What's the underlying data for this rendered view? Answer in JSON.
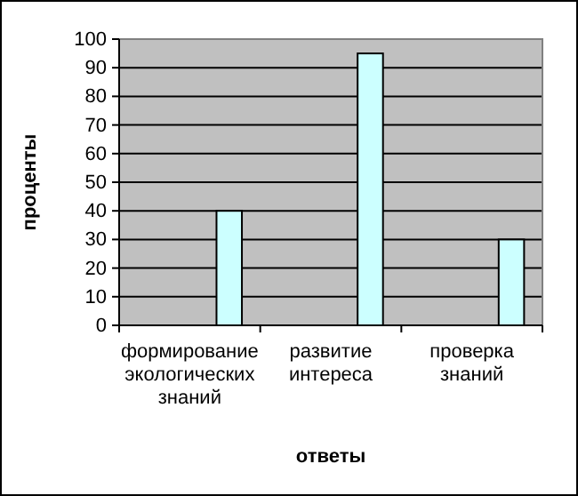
{
  "chart_data": {
    "type": "bar",
    "categories": [
      "формирование экологических знаний",
      "развитие интереса",
      "проверка знаний"
    ],
    "values": [
      40,
      95,
      30
    ],
    "color": "#ccffff",
    "ylim": [
      0,
      100
    ],
    "yticks": [
      0,
      10,
      20,
      30,
      40,
      50,
      60,
      70,
      80,
      90,
      100
    ],
    "grid": "y",
    "xlabel": "ответы",
    "ylabel": "проценты"
  }
}
